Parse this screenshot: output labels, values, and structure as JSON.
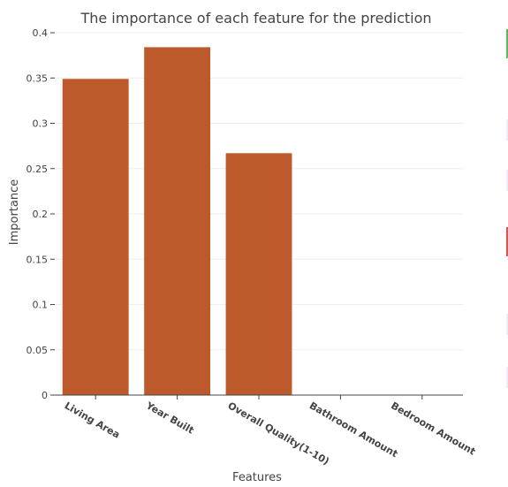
{
  "chart_data": {
    "type": "bar",
    "title": "The importance of each feature for the prediction",
    "xlabel": "Features",
    "ylabel": "Importance",
    "categories": [
      "Living Area",
      "Year Built",
      "Overall Quality(1-10)",
      "Bathroom Amount",
      "Bedroom Amount"
    ],
    "values": [
      0.349,
      0.384,
      0.267,
      0.0,
      0.0
    ],
    "ylim": [
      0,
      0.4
    ],
    "yticks": [
      0,
      0.05,
      0.1,
      0.15,
      0.2,
      0.25,
      0.3,
      0.35,
      0.4
    ],
    "ytick_labels": [
      "0",
      "0.05",
      "0.1",
      "0.15",
      "0.2",
      "0.25",
      "0.3",
      "0.35",
      "0.4"
    ],
    "bar_color": "#bc5a2b",
    "grid": true,
    "legend": "none"
  },
  "colors": {
    "text": "#444444",
    "grid": "#eeeeee",
    "axis": "#444444",
    "edge_green": "#5fb760",
    "edge_red": "#d9534f",
    "edge_faint": "#f2eaf5"
  }
}
